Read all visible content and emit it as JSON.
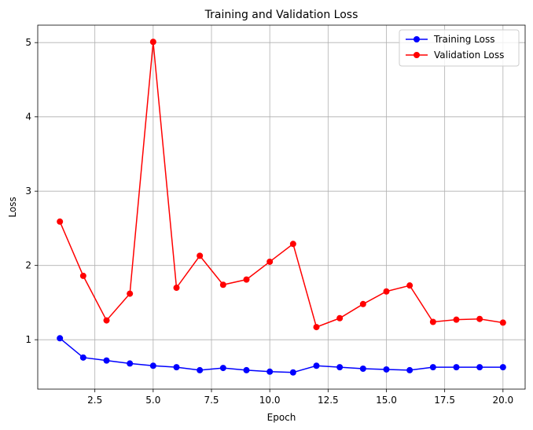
{
  "chart_data": {
    "type": "line",
    "title": "Training and Validation Loss",
    "xlabel": "Epoch",
    "ylabel": "Loss",
    "xlim": [
      0.05,
      20.95
    ],
    "ylim": [
      0.335,
      5.235
    ],
    "xticks": [
      2.5,
      5.0,
      7.5,
      10.0,
      12.5,
      15.0,
      17.5,
      20.0
    ],
    "xtick_labels": [
      "2.5",
      "5.0",
      "7.5",
      "10.0",
      "12.5",
      "15.0",
      "17.5",
      "20.0"
    ],
    "yticks": [
      1,
      2,
      3,
      4,
      5
    ],
    "ytick_labels": [
      "1",
      "2",
      "3",
      "4",
      "5"
    ],
    "grid": true,
    "legend_position": "top-right",
    "x": [
      1,
      2,
      3,
      4,
      5,
      6,
      7,
      8,
      9,
      10,
      11,
      12,
      13,
      14,
      15,
      16,
      17,
      18,
      19,
      20
    ],
    "series": [
      {
        "name": "Training Loss",
        "color": "#0000ff",
        "values": [
          1.02,
          0.76,
          0.72,
          0.68,
          0.65,
          0.63,
          0.59,
          0.62,
          0.59,
          0.57,
          0.56,
          0.65,
          0.63,
          0.61,
          0.6,
          0.59,
          0.63,
          0.63,
          0.63,
          0.63
        ]
      },
      {
        "name": "Validation Loss",
        "color": "#ff0000",
        "values": [
          2.59,
          1.86,
          1.26,
          1.62,
          5.01,
          1.7,
          2.13,
          1.74,
          1.81,
          2.05,
          2.29,
          1.17,
          1.29,
          1.48,
          1.65,
          1.73,
          1.24,
          1.27,
          1.28,
          1.23
        ]
      }
    ]
  }
}
